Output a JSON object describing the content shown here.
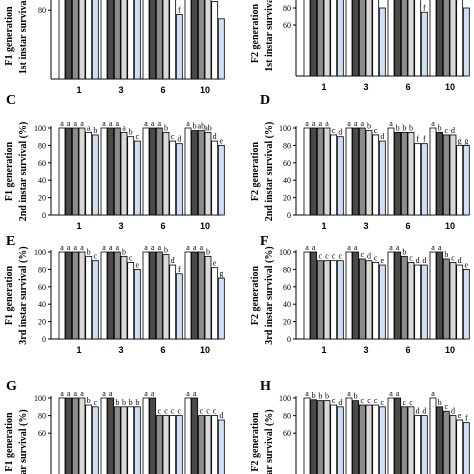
{
  "colors": {
    "bar_fills": [
      "#ffffff",
      "#4a4a4a",
      "#8c8c8c",
      "#d9d9d9",
      "#ffffff",
      "#cfe0f5"
    ],
    "stroke": "#000000"
  },
  "chart_data": [
    {
      "panel": "A",
      "type": "bar",
      "ylabel_line1": "F1 generation",
      "ylabel_line2": "1st instar survival",
      "categories": [
        "1",
        "3",
        "6",
        "10"
      ],
      "series_values": [
        [
          100,
          100,
          100,
          100,
          100,
          100
        ],
        [
          100,
          100,
          100,
          100,
          100,
          100
        ],
        [
          100,
          100,
          100,
          95,
          95,
          75
        ],
        [
          100,
          100,
          100,
          95,
          90,
          70
        ]
      ],
      "letters": [
        [
          "",
          "",
          "",
          "",
          "",
          ""
        ],
        [
          "",
          "",
          "",
          "",
          "",
          ""
        ],
        [
          "",
          "",
          "",
          "",
          "",
          "f"
        ],
        [
          "",
          "",
          "",
          "",
          "",
          ""
        ]
      ],
      "yticks": [
        80,
        100
      ],
      "ylim": [
        0,
        100
      ]
    },
    {
      "panel": "B",
      "type": "bar",
      "ylabel_line1": "F2 generation",
      "ylabel_line2": "1st instar survival",
      "categories": [
        "1",
        "3",
        "6",
        "10"
      ],
      "series_values": [
        [
          100,
          100,
          100,
          100,
          100,
          100
        ],
        [
          100,
          100,
          100,
          95,
          90,
          80
        ],
        [
          100,
          100,
          100,
          95,
          90,
          75
        ],
        [
          100,
          100,
          100,
          95,
          90,
          80
        ]
      ],
      "letters": [
        [
          "",
          "",
          "",
          "",
          "",
          ""
        ],
        [
          "",
          "",
          "",
          "",
          "",
          ""
        ],
        [
          "",
          "",
          "",
          "",
          "",
          "f"
        ],
        [
          "",
          "",
          "",
          "",
          "",
          ""
        ]
      ],
      "yticks": [
        60,
        80,
        100
      ],
      "ylim": [
        0,
        100
      ]
    },
    {
      "panel": "C",
      "type": "bar",
      "ylabel_line1": "F1 generation",
      "ylabel_line2": "2nd instar survival (%)",
      "categories": [
        "1",
        "3",
        "6",
        "10"
      ],
      "series_values": [
        [
          100,
          100,
          100,
          100,
          95,
          92
        ],
        [
          100,
          100,
          100,
          95,
          90,
          85
        ],
        [
          100,
          100,
          100,
          95,
          85,
          82
        ],
        [
          100,
          97,
          97,
          95,
          85,
          80
        ]
      ],
      "letters": [
        [
          "a",
          "a",
          "a",
          "a",
          "a",
          "b"
        ],
        [
          "a",
          "a",
          "a",
          "a",
          "b",
          "c"
        ],
        [
          "a",
          "a",
          "a",
          "b",
          "c",
          "d"
        ],
        [
          "a",
          "b",
          "ab",
          "ab",
          "d",
          "e"
        ]
      ],
      "yticks": [
        0,
        20,
        40,
        60,
        80,
        100
      ],
      "ylim": [
        0,
        100
      ]
    },
    {
      "panel": "D",
      "type": "bar",
      "ylabel_line1": "F2 generation",
      "ylabel_line2": "2nd instar survival (%)",
      "categories": [
        "1",
        "3",
        "6",
        "10"
      ],
      "series_values": [
        [
          100,
          100,
          100,
          100,
          92,
          90
        ],
        [
          100,
          100,
          100,
          97,
          92,
          85
        ],
        [
          100,
          95,
          95,
          95,
          82,
          82
        ],
        [
          100,
          95,
          92,
          92,
          80,
          80
        ]
      ],
      "letters": [
        [
          "a",
          "a",
          "a",
          "a",
          "c",
          "d"
        ],
        [
          "a",
          "a",
          "a",
          "b",
          "c",
          "d"
        ],
        [
          "a",
          "b",
          "b",
          "b",
          "f",
          "f"
        ],
        [
          "a",
          "b",
          "c",
          "d",
          "g",
          "g"
        ]
      ],
      "yticks": [
        0,
        20,
        40,
        60,
        80,
        100
      ],
      "ylim": [
        0,
        100
      ]
    },
    {
      "panel": "E",
      "type": "bar",
      "ylabel_line1": "F1 generation",
      "ylabel_line2": "3rd instar survival (%)",
      "categories": [
        "1",
        "3",
        "6",
        "10"
      ],
      "series_values": [
        [
          100,
          100,
          100,
          100,
          95,
          90
        ],
        [
          100,
          100,
          100,
          95,
          88,
          80
        ],
        [
          100,
          100,
          100,
          97,
          85,
          75
        ],
        [
          100,
          100,
          100,
          95,
          82,
          70
        ]
      ],
      "letters": [
        [
          "a",
          "a",
          "a",
          "a",
          "b",
          "c"
        ],
        [
          "a",
          "a",
          "a",
          "b",
          "c",
          "e"
        ],
        [
          "a",
          "a",
          "a",
          "b",
          "d",
          "f"
        ],
        [
          "a",
          "a",
          "a",
          "b",
          "e",
          "g"
        ]
      ],
      "yticks": [
        0,
        20,
        40,
        60,
        80,
        100
      ],
      "ylim": [
        0,
        100
      ]
    },
    {
      "panel": "F",
      "type": "bar",
      "ylabel_line1": "F2 generation",
      "ylabel_line2": "3rd instar survival (%)",
      "categories": [
        "1",
        "3",
        "6",
        "10"
      ],
      "series_values": [
        [
          100,
          100,
          90,
          90,
          90,
          90
        ],
        [
          100,
          100,
          92,
          90,
          88,
          85
        ],
        [
          100,
          100,
          95,
          88,
          85,
          85
        ],
        [
          100,
          100,
          92,
          88,
          85,
          80
        ]
      ],
      "letters": [
        [
          "a",
          "a",
          "c",
          "c",
          "c",
          "c"
        ],
        [
          "a",
          "a",
          "c",
          "d",
          "c",
          "e"
        ],
        [
          "a",
          "a",
          "b",
          "c",
          "d",
          "d"
        ],
        [
          "a",
          "a",
          "b",
          "c",
          "d",
          "e"
        ]
      ],
      "yticks": [
        0,
        20,
        40,
        60,
        80,
        100
      ],
      "ylim": [
        0,
        100
      ]
    },
    {
      "panel": "G",
      "type": "bar",
      "ylabel_line1": "F1 generation",
      "ylabel_line2": "ar survival (%)",
      "categories": [
        "1",
        "3",
        "6",
        "10"
      ],
      "series_values": [
        [
          100,
          100,
          100,
          100,
          92,
          90
        ],
        [
          100,
          100,
          90,
          90,
          90,
          90
        ],
        [
          100,
          100,
          80,
          80,
          80,
          80
        ],
        [
          100,
          100,
          80,
          80,
          80,
          75
        ]
      ],
      "letters": [
        [
          "a",
          "a",
          "a",
          "a",
          "b",
          "c"
        ],
        [
          "a",
          "a",
          "b",
          "b",
          "b",
          "b"
        ],
        [
          "a",
          "a",
          "c",
          "c",
          "c",
          "c"
        ],
        [
          "a",
          "a",
          "c",
          "c",
          "c",
          "d"
        ]
      ],
      "yticks": [
        60,
        80,
        100
      ],
      "ylim": [
        0,
        100
      ]
    },
    {
      "panel": "H",
      "type": "bar",
      "ylabel_line1": "F2 generation",
      "ylabel_line2": "ar survival (%)",
      "categories": [
        "1",
        "3",
        "6",
        "10"
      ],
      "series_values": [
        [
          100,
          98,
          97,
          97,
          92,
          90
        ],
        [
          100,
          97,
          92,
          92,
          92,
          90
        ],
        [
          100,
          100,
          90,
          90,
          80,
          80
        ],
        [
          100,
          90,
          85,
          80,
          75,
          72
        ]
      ],
      "letters": [
        [
          "a",
          "b",
          "b",
          "b",
          "c",
          "d"
        ],
        [
          "a",
          "b",
          "c",
          "c",
          "c",
          "c"
        ],
        [
          "a",
          "a",
          "c",
          "c",
          "d",
          "d"
        ],
        [
          "a",
          "b",
          "c",
          "d",
          "e",
          "f"
        ]
      ],
      "yticks": [
        60,
        80,
        100
      ],
      "ylim": [
        0,
        100
      ]
    }
  ]
}
